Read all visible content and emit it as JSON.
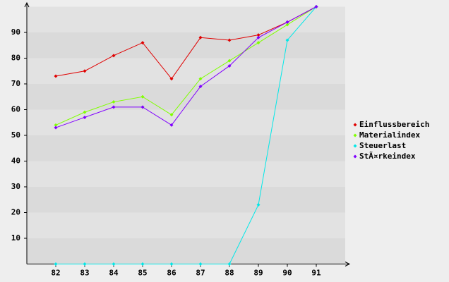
{
  "chart_data": {
    "type": "line",
    "categories": [
      "82",
      "83",
      "84",
      "85",
      "86",
      "87",
      "88",
      "89",
      "90",
      "91"
    ],
    "series": [
      {
        "name": "Einflussbereich",
        "color": "#e00000",
        "values": [
          73,
          75,
          81,
          86,
          72,
          88,
          87,
          89,
          94,
          100
        ]
      },
      {
        "name": "Materialindex",
        "color": "#80ff00",
        "values": [
          54,
          59,
          63,
          65,
          58,
          72,
          79,
          86,
          93,
          100
        ]
      },
      {
        "name": "Steuerlast",
        "color": "#00e8e8",
        "values": [
          0,
          0,
          0,
          0,
          0,
          0,
          0,
          23,
          87,
          100
        ]
      },
      {
        "name": "StÃ¤rkeindex",
        "color": "#8000ff",
        "values": [
          53,
          57,
          61,
          61,
          54,
          69,
          77,
          88,
          94,
          100
        ]
      }
    ],
    "ylim": [
      0,
      100
    ],
    "yticks": [
      10,
      20,
      30,
      40,
      50,
      60,
      70,
      80,
      90
    ],
    "grid": true,
    "legend": "right"
  }
}
